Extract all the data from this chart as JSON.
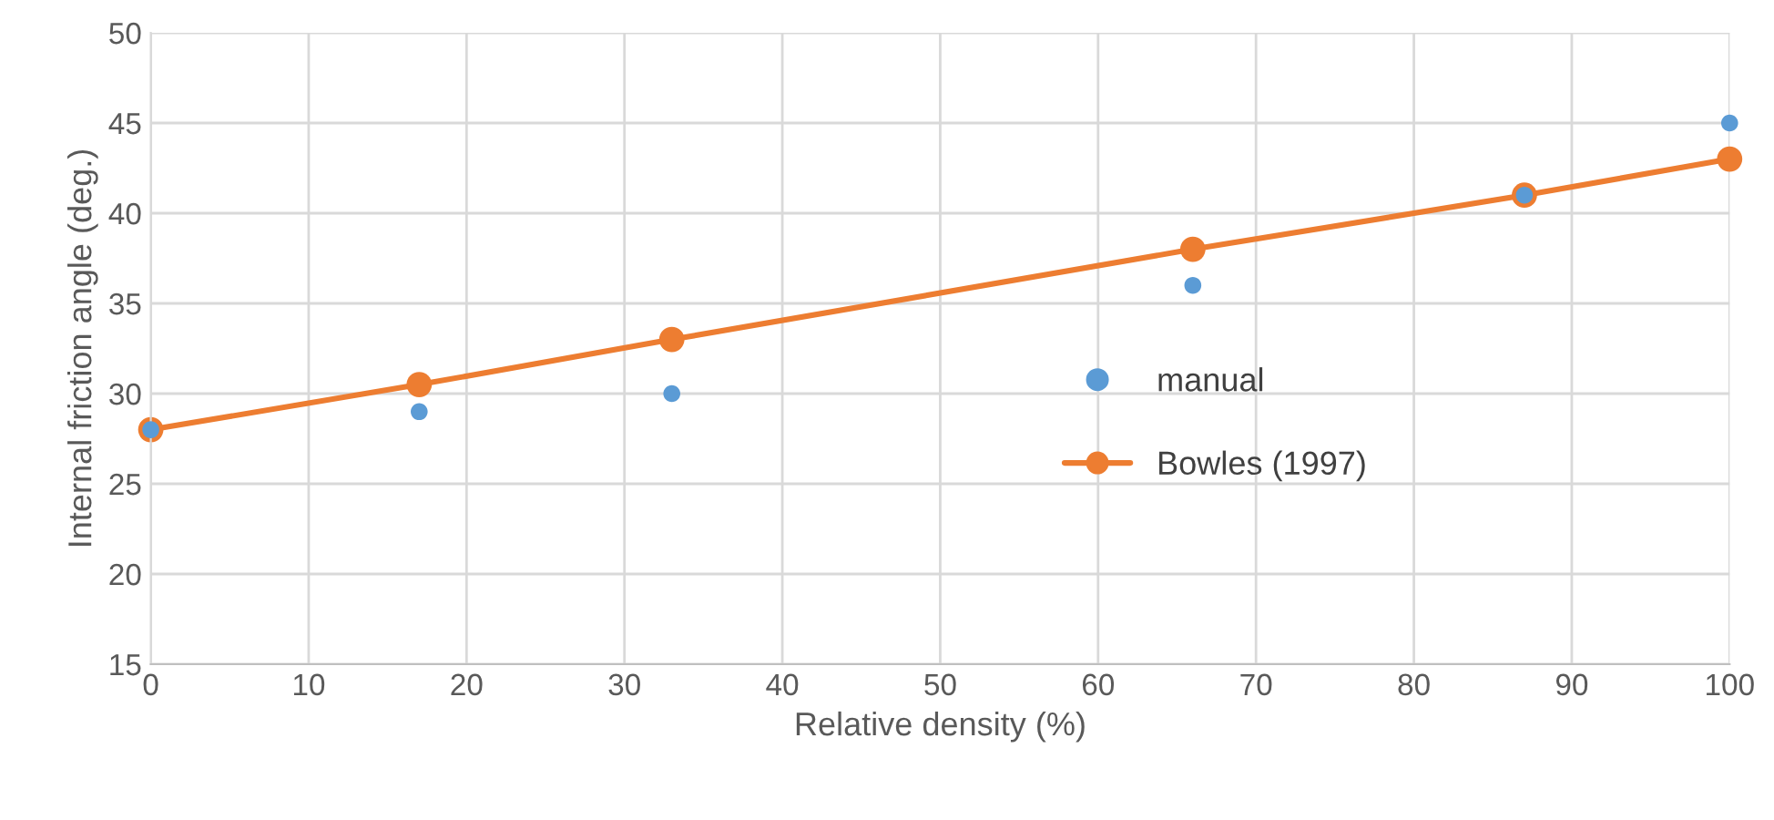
{
  "chart_data": {
    "type": "scatter",
    "xlabel": "Relative density (%)",
    "ylabel": "Internal friction angle (deg.)",
    "x": [
      0,
      17,
      33,
      66,
      87,
      100
    ],
    "series": [
      {
        "name": "manual",
        "color": "#5b9bd5",
        "values": [
          28,
          29,
          30,
          36,
          41,
          45
        ]
      },
      {
        "name": "Bowles (1997)",
        "type": "line",
        "color": "#ed7d31",
        "values": [
          28,
          30.5,
          33,
          38,
          41,
          43
        ]
      }
    ],
    "xlim": [
      0,
      100
    ],
    "xticks": [
      0,
      10,
      20,
      30,
      40,
      50,
      60,
      70,
      80,
      90,
      100
    ],
    "ylim": [
      15,
      50
    ],
    "yticks": [
      15,
      20,
      25,
      30,
      35,
      40,
      45,
      50
    ],
    "grid": true,
    "legend": "right",
    "marker": "circle"
  }
}
